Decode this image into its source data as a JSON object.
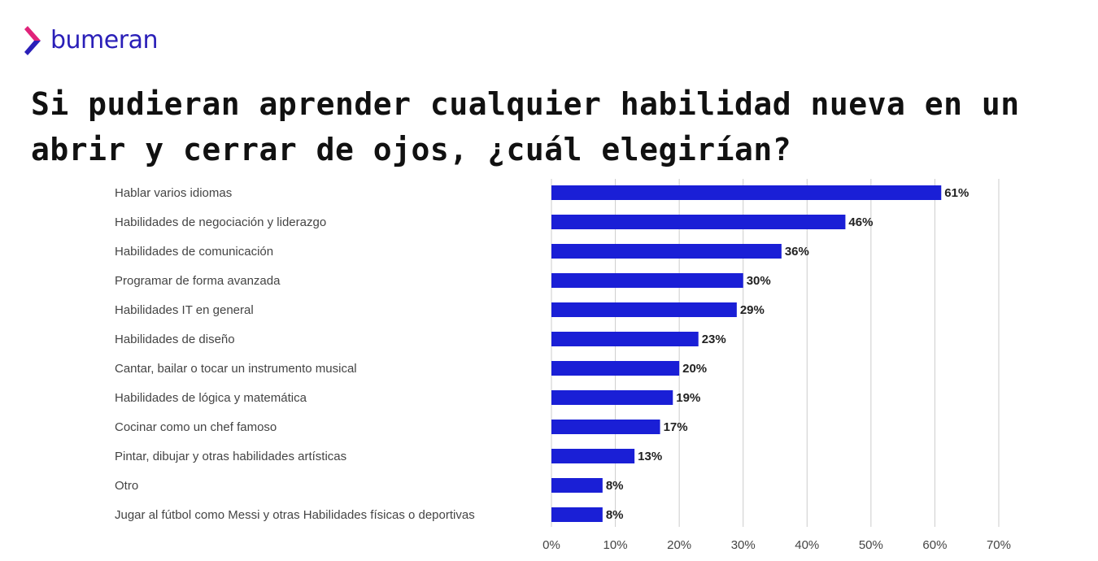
{
  "brand": {
    "name": "bumeran",
    "logo_icon": "chevron-logo-icon",
    "colors": {
      "logo_top": "#e0237a",
      "logo_bottom": "#2a1fb8",
      "text": "#2a1fb8"
    }
  },
  "title": "Si pudieran aprender cualquier habilidad nueva en un abrir y cerrar de ojos, ¿cuál elegirían?",
  "chart_data": {
    "type": "bar",
    "orientation": "horizontal",
    "categories": [
      "Hablar varios idiomas",
      "Habilidades de negociación y liderazgo",
      "Habilidades de comunicación",
      "Programar de forma avanzada",
      "Habilidades IT en general",
      "Habilidades de diseño",
      "Cantar, bailar o tocar un instrumento musical",
      "Habilidades de lógica y matemática",
      "Cocinar como un chef famoso",
      "Pintar, dibujar y otras habilidades artísticas",
      "Otro",
      "Jugar al fútbol como Messi y otras Habilidades físicas o deportivas"
    ],
    "values": [
      61,
      46,
      36,
      30,
      29,
      23,
      20,
      19,
      17,
      13,
      8,
      8
    ],
    "value_labels": [
      "61%",
      "46%",
      "36%",
      "30%",
      "29%",
      "23%",
      "20%",
      "19%",
      "17%",
      "13%",
      "8%",
      "8%"
    ],
    "xlim": [
      0,
      70
    ],
    "ticks": [
      0,
      10,
      20,
      30,
      40,
      50,
      60,
      70
    ],
    "tick_labels": [
      "0%",
      "10%",
      "20%",
      "30%",
      "40%",
      "50%",
      "60%",
      "70%"
    ],
    "grid": "vertical",
    "bar_color": "#1a1fd6",
    "grid_color": "#cccccc"
  }
}
